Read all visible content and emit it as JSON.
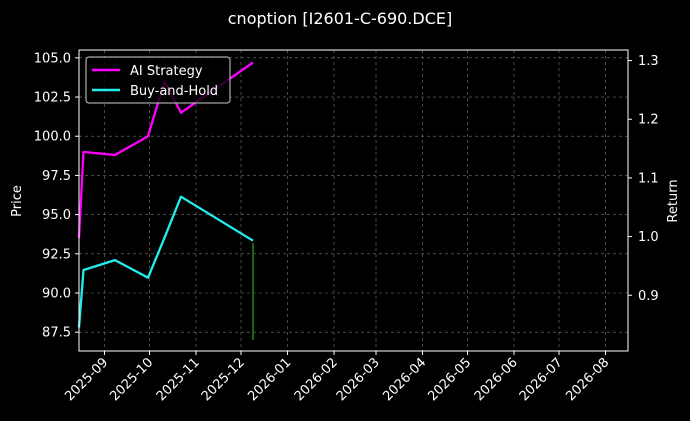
{
  "chart_data": {
    "type": "line",
    "title": "cnoption [I2601-C-690.DCE]",
    "ylabel": "Price",
    "y2label": "Return",
    "grid": true,
    "legend_position": "upper-left",
    "x_ticks": [
      "2025-09",
      "2025-10",
      "2025-11",
      "2025-12",
      "2026-01",
      "2026-02",
      "2026-03",
      "2026-04",
      "2026-05",
      "2026-06",
      "2026-07",
      "2026-08"
    ],
    "x_tick_dates": [
      "2025-09-01",
      "2025-10-01",
      "2025-11-01",
      "2025-12-01",
      "2026-01-01",
      "2026-02-01",
      "2026-03-01",
      "2026-04-01",
      "2026-05-01",
      "2026-06-01",
      "2026-07-01",
      "2026-08-01"
    ],
    "xlim": [
      "2025-08-15",
      "2026-08-16"
    ],
    "y_ticks": [
      "87.5",
      "90.0",
      "92.5",
      "95.0",
      "97.5",
      "100.0",
      "102.5",
      "105.0"
    ],
    "ylim": [
      86.3,
      105.5
    ],
    "y2_ticks": [
      "0.9",
      "1.0",
      "1.1",
      "1.2",
      "1.3"
    ],
    "y2lim": [
      0.805,
      1.318
    ],
    "series": [
      {
        "name": "AI Strategy",
        "axis": "left",
        "color": "#ff00ff",
        "x": [
          "2025-08-15",
          "2025-08-18",
          "2025-09-08",
          "2025-09-30",
          "2025-10-11",
          "2025-10-22",
          "2025-12-09"
        ],
        "y": [
          93.5,
          99.0,
          98.8,
          100.0,
          103.5,
          101.5,
          104.7
        ]
      },
      {
        "name": "Buy-and-Hold",
        "axis": "right",
        "color": "#22eeee",
        "x": [
          "2025-08-15",
          "2025-08-18",
          "2025-09-08",
          "2025-09-30",
          "2025-10-11",
          "2025-10-22",
          "2025-12-09"
        ],
        "y": [
          0.845,
          0.943,
          0.96,
          0.93,
          0.998,
          1.068,
          0.993
        ]
      }
    ],
    "signals": [
      {
        "x": "2025-12-09",
        "y_from": 87.0,
        "y_to": 93.2,
        "color": "#22aa22"
      }
    ]
  }
}
